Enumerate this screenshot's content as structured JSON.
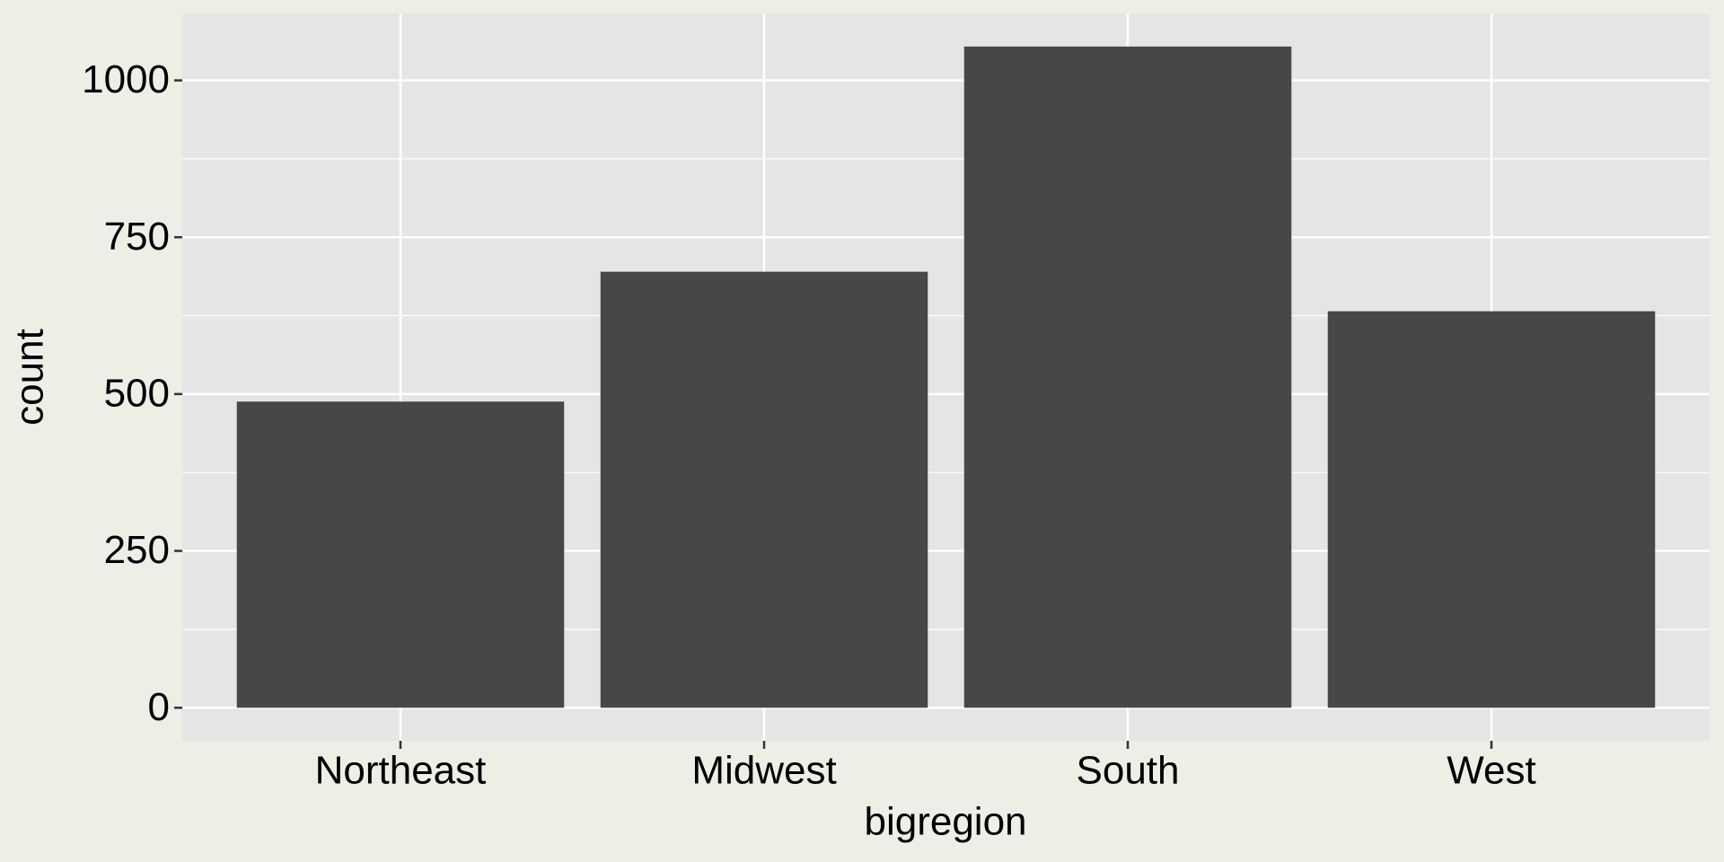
{
  "chart_data": {
    "type": "bar",
    "x_label": "bigregion",
    "y_label": "count",
    "categories": [
      "Northeast",
      "Midwest",
      "South",
      "West"
    ],
    "values": [
      488,
      695,
      1054,
      632
    ],
    "color": "#474747",
    "ylim": [
      -52.7,
      1106.7
    ],
    "yticks": [
      0,
      250,
      500,
      750,
      1000
    ],
    "grid": true
  }
}
